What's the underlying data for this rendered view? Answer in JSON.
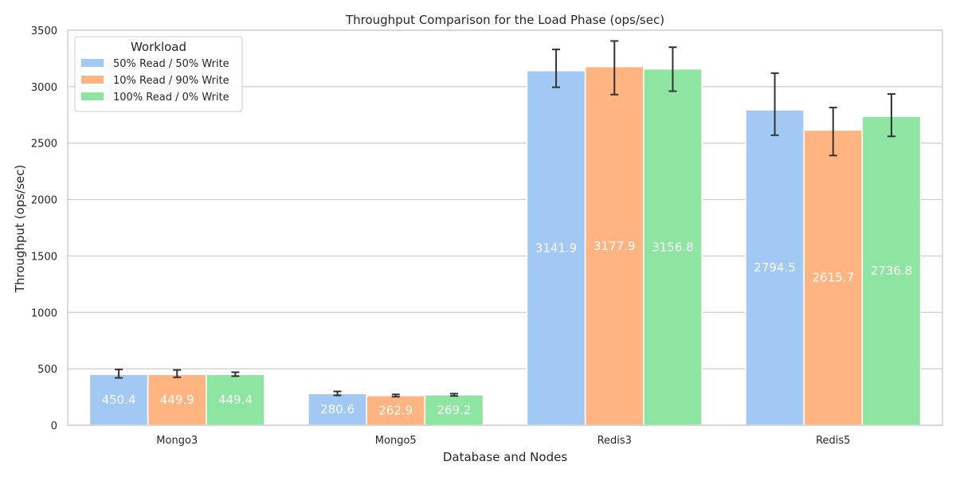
{
  "chart_data": {
    "type": "bar",
    "title": "Throughput Comparison for the Load Phase (ops/sec)",
    "xlabel": "Database and Nodes",
    "ylabel": "Throughput (ops/sec)",
    "categories": [
      "Mongo3",
      "Mongo5",
      "Redis3",
      "Redis5"
    ],
    "ylim": [
      0,
      3500
    ],
    "yticks": [
      0,
      500,
      1000,
      1500,
      2000,
      2500,
      3000,
      3500
    ],
    "grid": true,
    "legend": {
      "title": "Workload",
      "placement": "top-left"
    },
    "series": [
      {
        "name": "50% Read / 50% Write",
        "color": "#a1c9f4",
        "values": [
          450.4,
          280.6,
          3141.9,
          2794.5
        ],
        "error_low": [
          420,
          265,
          2995,
          2570
        ],
        "error_high": [
          495,
          300,
          3330,
          3120
        ]
      },
      {
        "name": "10% Read / 90% Write",
        "color": "#ffb482",
        "values": [
          449.9,
          262.9,
          3177.9,
          2615.7
        ],
        "error_low": [
          425,
          253,
          2930,
          2390
        ],
        "error_high": [
          490,
          273,
          3405,
          2815
        ]
      },
      {
        "name": "100% Read / 0% Write",
        "color": "#8de5a1",
        "values": [
          449.4,
          269.2,
          3156.8,
          2736.8
        ],
        "error_low": [
          435,
          260,
          2960,
          2560
        ],
        "error_high": [
          470,
          280,
          3350,
          2935
        ]
      }
    ],
    "data_labels": true,
    "label_color": "#ffffff"
  },
  "colors": {
    "grid": "#cccccc",
    "axis": "#cccccc",
    "errorbar": "#333333",
    "text": "#262626"
  }
}
